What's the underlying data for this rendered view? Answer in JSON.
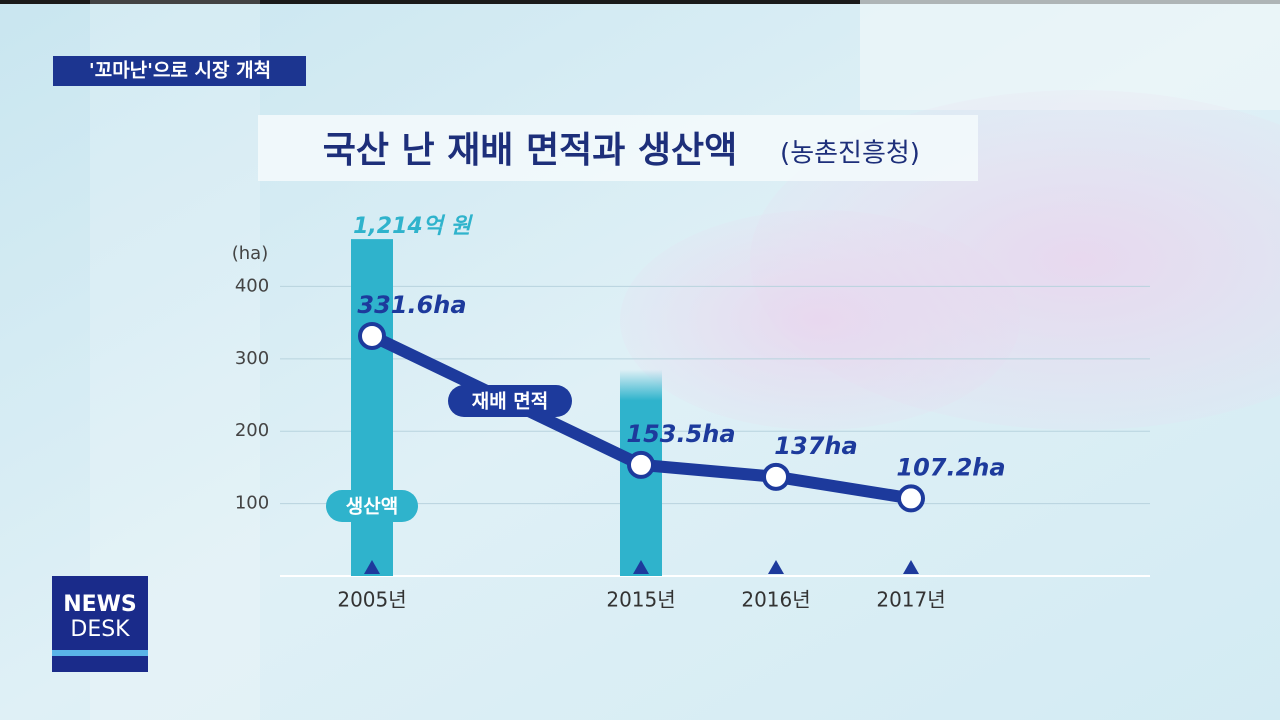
{
  "header": {
    "tag": "'꼬마난'으로 시장 개척",
    "logo_top": "NEWS",
    "logo_bottom": "DESK"
  },
  "chart_data": {
    "type": "bar_line",
    "title": "국산 난 재배 면적과 생산액",
    "subtitle": "(농촌진흥청)",
    "y_label": "(ha)",
    "categories": [
      "2005년",
      "2015년",
      "2016년",
      "2017년"
    ],
    "ylim": [
      0,
      460
    ],
    "yticks": [
      100,
      200,
      300,
      400
    ],
    "y2lim": [
      0,
      1200
    ],
    "grid": true,
    "series": [
      {
        "name": "생산액",
        "type": "bar",
        "axis": "y2",
        "color": "#2fb3cc",
        "values": [
          1214,
          744,
          null,
          null
        ],
        "value_labels": [
          "1,214억 원",
          null,
          null,
          null
        ]
      },
      {
        "name": "재배 면적",
        "type": "line",
        "color": "#1d3a9c",
        "values": [
          331.6,
          153.5,
          137,
          107.2
        ],
        "value_labels": [
          "331.6ha",
          "153.5ha",
          "137ha",
          "107.2ha"
        ]
      }
    ]
  }
}
